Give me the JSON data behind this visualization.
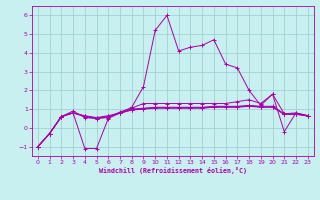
{
  "xlabel": "Windchill (Refroidissement éolien,°C)",
  "xlim": [
    -0.5,
    23.5
  ],
  "ylim": [
    -1.5,
    6.5
  ],
  "yticks": [
    -1,
    0,
    1,
    2,
    3,
    4,
    5,
    6
  ],
  "xticks": [
    0,
    1,
    2,
    3,
    4,
    5,
    6,
    7,
    8,
    9,
    10,
    11,
    12,
    13,
    14,
    15,
    16,
    17,
    18,
    19,
    20,
    21,
    22,
    23
  ],
  "bg_color": "#c8f0f0",
  "grid_color": "#99cccc",
  "line_color": "#aa00aa",
  "series": [
    [
      -1.0,
      -0.3,
      0.6,
      0.8,
      -1.1,
      -1.1,
      0.5,
      0.8,
      1.1,
      2.2,
      5.2,
      6.0,
      4.1,
      4.3,
      4.4,
      4.7,
      3.4,
      3.2,
      2.0,
      1.2,
      1.8,
      -0.2,
      0.8,
      0.65
    ],
    [
      -1.0,
      -0.3,
      0.6,
      0.9,
      0.55,
      0.5,
      0.55,
      0.85,
      1.05,
      1.3,
      1.3,
      1.3,
      1.3,
      1.3,
      1.3,
      1.3,
      1.3,
      1.4,
      1.5,
      1.3,
      1.8,
      0.75,
      0.8,
      0.65
    ],
    [
      -1.0,
      -0.3,
      0.6,
      0.8,
      0.65,
      0.55,
      0.65,
      0.8,
      1.0,
      1.05,
      1.1,
      1.1,
      1.1,
      1.1,
      1.1,
      1.15,
      1.15,
      1.15,
      1.2,
      1.15,
      1.15,
      0.75,
      0.75,
      0.65
    ],
    [
      -1.0,
      -0.3,
      0.6,
      0.8,
      0.6,
      0.5,
      0.6,
      0.78,
      0.95,
      1.0,
      1.05,
      1.05,
      1.05,
      1.05,
      1.05,
      1.1,
      1.1,
      1.1,
      1.15,
      1.1,
      1.1,
      0.72,
      0.72,
      0.63
    ],
    [
      -1.0,
      -0.3,
      0.6,
      0.8,
      0.62,
      0.52,
      0.62,
      0.79,
      0.97,
      1.02,
      1.07,
      1.07,
      1.07,
      1.07,
      1.07,
      1.12,
      1.12,
      1.12,
      1.18,
      1.12,
      1.12,
      0.74,
      0.74,
      0.64
    ]
  ]
}
